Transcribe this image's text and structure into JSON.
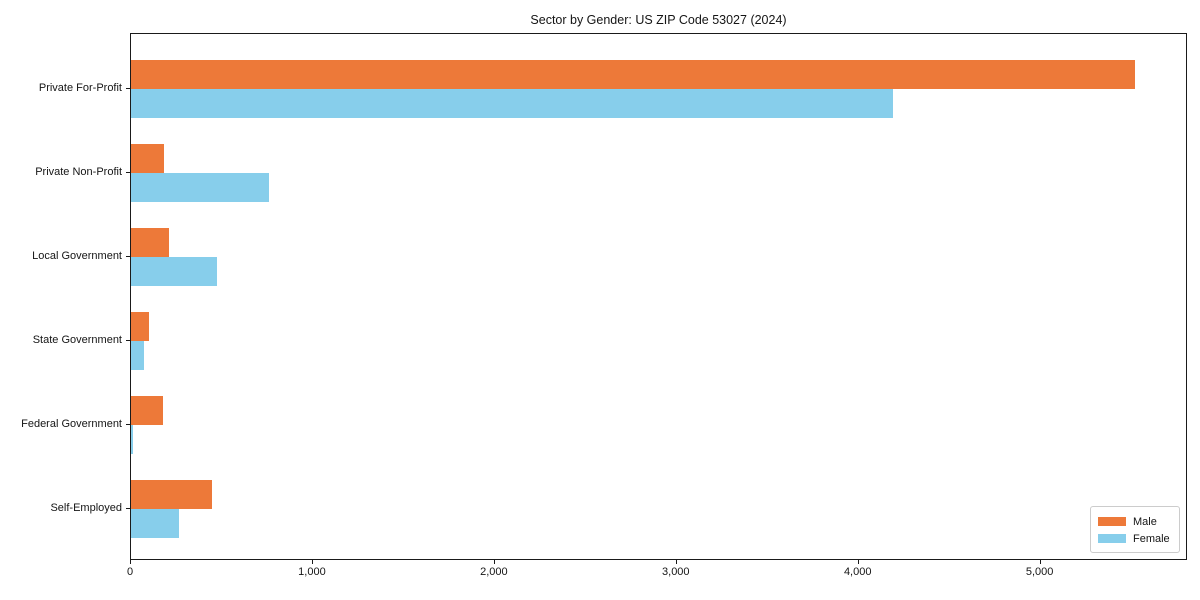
{
  "chart_data": {
    "type": "bar",
    "orientation": "horizontal",
    "title": "Sector by Gender: US ZIP Code 53027 (2024)",
    "categories": [
      "Private For-Profit",
      "Private Non-Profit",
      "Local Government",
      "State Government",
      "Federal Government",
      "Self-Employed"
    ],
    "series": [
      {
        "name": "Male",
        "color": "#ED7939",
        "values": [
          5520,
          180,
          210,
          100,
          175,
          445
        ]
      },
      {
        "name": "Female",
        "color": "#87CEEB",
        "values": [
          4190,
          760,
          470,
          70,
          12,
          265
        ]
      }
    ],
    "xlabel": "",
    "ylabel": "",
    "xlim": [
      0,
      5810
    ],
    "x_ticks": [
      0,
      1000,
      2000,
      3000,
      4000,
      5000
    ],
    "x_tick_labels": [
      "0",
      "1,000",
      "2,000",
      "3,000",
      "4,000",
      "5,000"
    ],
    "grid": false,
    "legend_position": "lower right"
  }
}
